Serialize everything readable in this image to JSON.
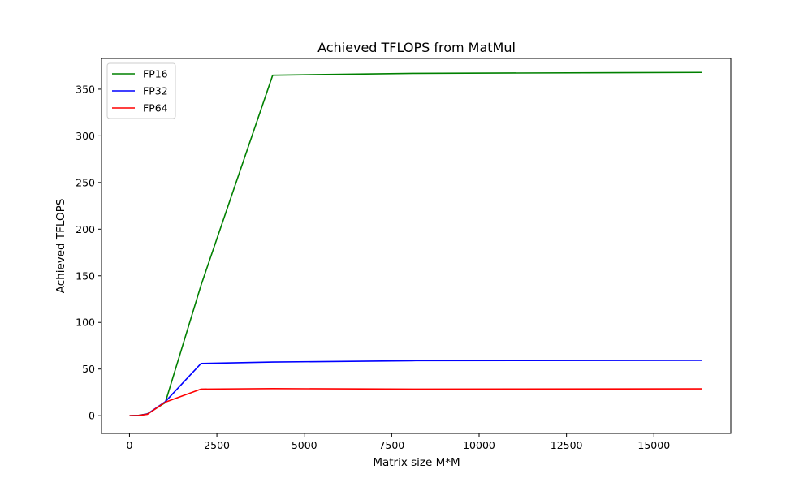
{
  "chart_data": {
    "type": "line",
    "title": "Achieved TFLOPS from MatMul",
    "xlabel": "Matrix size M*M",
    "ylabel": "Achieved TFLOPS",
    "xlim": [
      -800,
      17200
    ],
    "ylim": [
      -19,
      383
    ],
    "xticks": [
      0,
      2500,
      5000,
      7500,
      10000,
      12500,
      15000
    ],
    "yticks": [
      0,
      50,
      100,
      150,
      200,
      250,
      300,
      350
    ],
    "grid": false,
    "legend_position": "top-left",
    "x": [
      1,
      256,
      512,
      1024,
      2048,
      4096,
      8192,
      16384
    ],
    "series": [
      {
        "name": "FP16",
        "color": "#008000",
        "values": [
          0.0,
          0.3,
          2.0,
          14.0,
          140.0,
          365.0,
          367.0,
          368.0
        ]
      },
      {
        "name": "FP32",
        "color": "#0000ff",
        "values": [
          0.0,
          0.2,
          1.8,
          15.0,
          56.0,
          57.5,
          59.0,
          59.3
        ]
      },
      {
        "name": "FP64",
        "color": "#ff0000",
        "values": [
          0.0,
          0.2,
          1.5,
          14.5,
          28.5,
          29.0,
          28.5,
          28.8
        ]
      }
    ]
  }
}
